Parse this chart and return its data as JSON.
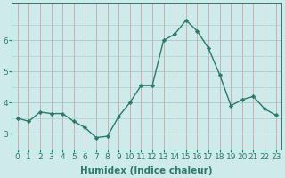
{
  "x": [
    0,
    1,
    2,
    3,
    4,
    5,
    6,
    7,
    8,
    9,
    10,
    11,
    12,
    13,
    14,
    15,
    16,
    17,
    18,
    19,
    20,
    21,
    22,
    23
  ],
  "y": [
    3.5,
    3.4,
    3.7,
    3.65,
    3.65,
    3.4,
    3.2,
    2.88,
    2.92,
    3.55,
    4.0,
    4.55,
    4.55,
    6.0,
    6.2,
    6.65,
    6.3,
    5.75,
    4.9,
    3.9,
    4.1,
    4.2,
    3.8,
    3.6
  ],
  "line_color": "#2a7a6a",
  "marker": "D",
  "marker_size": 2.2,
  "bg_color": "#ceeaea",
  "grid_v_color": "#c8a8a8",
  "grid_h_color": "#a8c8c8",
  "xlabel": "Humidex (Indice chaleur)",
  "ylim": [
    2.5,
    7.2
  ],
  "xlim": [
    -0.5,
    23.5
  ],
  "yticks": [
    3,
    4,
    5,
    6
  ],
  "xlabel_fontsize": 7.5,
  "tick_fontsize": 6.5,
  "linewidth": 1.0
}
